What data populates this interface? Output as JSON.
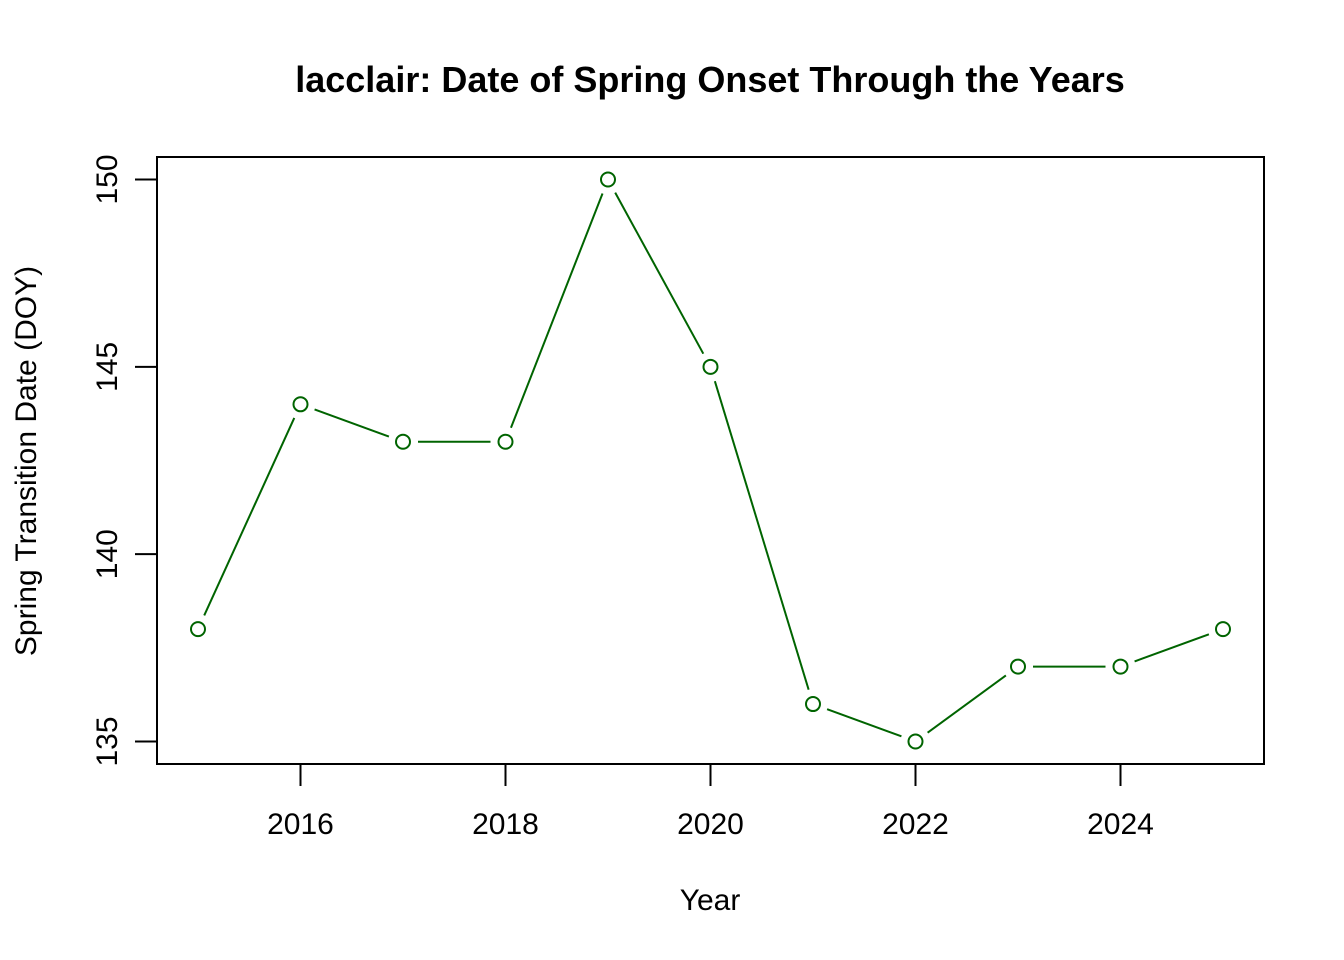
{
  "chart_data": {
    "type": "line",
    "title": "lacclair: Date of Spring Onset Through the Years",
    "xlabel": "Year",
    "ylabel": "Spring Transition Date (DOY)",
    "x": [
      2015,
      2016,
      2017,
      2018,
      2019,
      2020,
      2021,
      2022,
      2023,
      2024,
      2025
    ],
    "series": [
      {
        "values": [
          138,
          144,
          143,
          143,
          150,
          145,
          136,
          135,
          137,
          137,
          138
        ],
        "color": "#006400",
        "marker": "open-circle"
      }
    ],
    "xticks": [
      2016,
      2018,
      2020,
      2022,
      2024
    ],
    "yticks": [
      135,
      140,
      145,
      150
    ],
    "xlim": [
      2014.6,
      2025.4
    ],
    "ylim": [
      134.4,
      150.6
    ],
    "grid": false,
    "legend": "none"
  }
}
